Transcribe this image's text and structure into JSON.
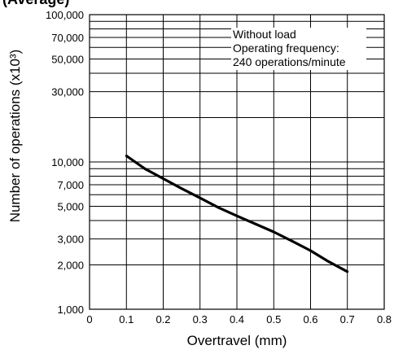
{
  "header_fragment": "(Average)",
  "chart_data": {
    "type": "line",
    "title": "",
    "xlabel": "Overtravel (mm)",
    "ylabel": "Number of operations  (x10³)",
    "y_scale": "log",
    "xlim": [
      0,
      0.8
    ],
    "ylim": [
      1000,
      100000
    ],
    "x_ticks": [
      "0",
      "0.1",
      "0.2",
      "0.3",
      "0.4",
      "0.5",
      "0.6",
      "0.7",
      "0.8"
    ],
    "y_tick_labels": [
      {
        "value": 1000,
        "label": "1,000"
      },
      {
        "value": 2000,
        "label": "2,000"
      },
      {
        "value": 3000,
        "label": "3,000"
      },
      {
        "value": 5000,
        "label": "5,000"
      },
      {
        "value": 7000,
        "label": "7,000"
      },
      {
        "value": 10000,
        "label": "10,000"
      },
      {
        "value": 30000,
        "label": "30,000"
      },
      {
        "value": 50000,
        "label": "50,000"
      },
      {
        "value": 70000,
        "label": "70,000"
      },
      {
        "value": 100000,
        "label": "100,000"
      }
    ],
    "y_gridlines": [
      2000,
      3000,
      4000,
      5000,
      6000,
      7000,
      8000,
      9000,
      10000,
      20000,
      30000,
      40000,
      50000,
      60000,
      70000,
      80000,
      90000,
      100000
    ],
    "grid": true,
    "annotation": [
      "Without load",
      "Operating frequency:",
      "240 operations/minute"
    ],
    "series": [
      {
        "x": [
          0.1,
          0.15,
          0.2,
          0.25,
          0.3,
          0.35,
          0.4,
          0.45,
          0.5,
          0.55,
          0.6,
          0.65,
          0.7
        ],
        "values": [
          11000,
          9000,
          7700,
          6600,
          5700,
          4900,
          4300,
          3800,
          3350,
          2900,
          2500,
          2100,
          1800
        ]
      }
    ]
  }
}
